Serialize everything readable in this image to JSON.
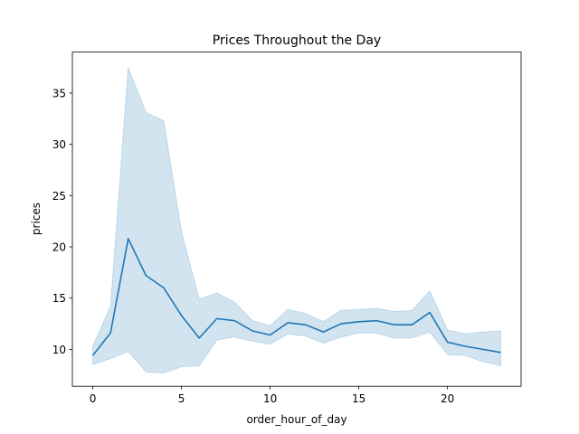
{
  "chart_data": {
    "type": "line",
    "title": "Prices Throughout the Day",
    "xlabel": "order_hour_of_day",
    "ylabel": "prices",
    "xlim": [
      -1.15,
      24.15
    ],
    "ylim": [
      6.4,
      39.0
    ],
    "xticks": [
      0,
      5,
      10,
      15,
      20
    ],
    "xtick_labels": [
      "0",
      "5",
      "10",
      "15",
      "20"
    ],
    "yticks": [
      10,
      15,
      20,
      25,
      30,
      35
    ],
    "ytick_labels": [
      "10",
      "15",
      "20",
      "25",
      "30",
      "35"
    ],
    "grid": false,
    "legend": "none",
    "series": [
      {
        "x": [
          0,
          1,
          2,
          3,
          4,
          5,
          6,
          7,
          8,
          9,
          10,
          11,
          12,
          13,
          14,
          15,
          16,
          17,
          18,
          19,
          20,
          21,
          22,
          23
        ],
        "values": [
          9.4,
          11.6,
          20.8,
          17.2,
          16.0,
          13.3,
          11.1,
          13.0,
          12.8,
          11.8,
          11.4,
          12.6,
          12.4,
          11.7,
          12.5,
          12.7,
          12.8,
          12.4,
          12.4,
          13.6,
          10.7,
          10.3,
          10.0,
          9.7
        ],
        "ci_lower": [
          8.5,
          9.1,
          9.8,
          7.8,
          7.7,
          8.3,
          8.4,
          10.9,
          11.2,
          10.8,
          10.5,
          11.5,
          11.3,
          10.6,
          11.2,
          11.6,
          11.6,
          11.1,
          11.1,
          11.7,
          9.5,
          9.4,
          8.8,
          8.4
        ],
        "ci_upper": [
          10.3,
          14.2,
          37.5,
          33.1,
          32.3,
          21.5,
          14.9,
          15.5,
          14.6,
          12.8,
          12.3,
          13.9,
          13.5,
          12.7,
          13.8,
          13.9,
          14.0,
          13.7,
          13.8,
          15.7,
          11.9,
          11.5,
          11.7,
          11.8
        ]
      }
    ],
    "colors": {
      "line": "#1f77b4",
      "band": "#1f77b4",
      "axes": "#000000"
    }
  }
}
